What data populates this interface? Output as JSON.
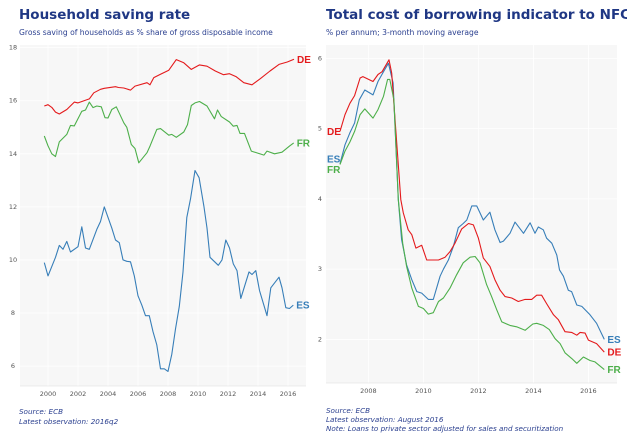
{
  "chart_data": [
    {
      "type": "line",
      "title": "Household saving rate",
      "subtitle": "Gross saving of households as % share of gross disposable income",
      "xlim": [
        1998.13,
        2017.2
      ],
      "ylim": [
        5.25,
        18.1
      ],
      "xticks": [
        2000,
        2002,
        2004,
        2006,
        2008,
        2010,
        2012,
        2014,
        2016
      ],
      "yticks": [
        6,
        8,
        10,
        12,
        14,
        16,
        18
      ],
      "grid": true,
      "label_position": "end",
      "footnotes": [
        "Source: ECB",
        "Latest observation: 2016q2"
      ],
      "series": [
        {
          "name": "DE",
          "color": "#e41a1c",
          "x": [
            1999.75,
            2000.0,
            2000.25,
            2000.5,
            2000.75,
            2001.25,
            2001.75,
            2002.0,
            2002.75,
            2003.05,
            2003.5,
            2003.75,
            2004.5,
            2004.7,
            2005.05,
            2005.5,
            2005.8,
            2006.6,
            2006.8,
            2007.05,
            2007.5,
            2008.05,
            2008.55,
            2009.05,
            2009.55,
            2010.1,
            2010.6,
            2011.15,
            2011.7,
            2012.1,
            2012.55,
            2013.05,
            2013.6,
            2014.15,
            2014.8,
            2015.4,
            2015.95,
            2016.4
          ],
          "y": [
            15.8,
            15.85,
            15.75,
            15.57,
            15.5,
            15.67,
            15.95,
            15.92,
            16.07,
            16.3,
            16.43,
            16.47,
            16.53,
            16.5,
            16.48,
            16.4,
            16.55,
            16.68,
            16.6,
            16.87,
            17.0,
            17.15,
            17.55,
            17.43,
            17.18,
            17.35,
            17.3,
            17.12,
            16.98,
            17.02,
            16.9,
            16.68,
            16.6,
            16.83,
            17.12,
            17.37,
            17.46,
            17.56
          ]
        },
        {
          "name": "FR",
          "color": "#4daf4a",
          "x": [
            1999.75,
            2000.0,
            2000.25,
            2000.5,
            2000.75,
            2001.25,
            2001.5,
            2001.75,
            2002.25,
            2002.5,
            2002.75,
            2003.0,
            2003.25,
            2003.55,
            2003.8,
            2004.0,
            2004.25,
            2004.55,
            2005.05,
            2005.25,
            2005.55,
            2005.8,
            2006.05,
            2006.6,
            2006.8,
            2007.25,
            2007.5,
            2008.05,
            2008.25,
            2008.55,
            2009.05,
            2009.3,
            2009.55,
            2009.8,
            2010.1,
            2010.6,
            2011.1,
            2011.3,
            2011.55,
            2012.1,
            2012.35,
            2012.6,
            2012.8,
            2013.1,
            2013.55,
            2014.4,
            2014.6,
            2015.1,
            2015.6,
            2016.1,
            2016.38
          ],
          "y": [
            14.67,
            14.3,
            14.0,
            13.9,
            14.45,
            14.73,
            15.07,
            15.05,
            15.6,
            15.65,
            15.95,
            15.74,
            15.8,
            15.77,
            15.36,
            15.35,
            15.67,
            15.77,
            15.17,
            15.0,
            14.35,
            14.2,
            13.66,
            14.04,
            14.29,
            14.92,
            14.95,
            14.7,
            14.73,
            14.62,
            14.82,
            15.1,
            15.82,
            15.92,
            15.97,
            15.8,
            15.32,
            15.65,
            15.4,
            15.2,
            15.04,
            15.07,
            14.77,
            14.77,
            14.1,
            13.95,
            14.1,
            14.0,
            14.06,
            14.29,
            14.41
          ]
        },
        {
          "name": "ES",
          "color": "#377eb8",
          "x": [
            1999.75,
            2000.0,
            2000.5,
            2000.75,
            2001.0,
            2001.25,
            2001.5,
            2002.0,
            2002.25,
            2002.5,
            2002.75,
            2003.25,
            2003.5,
            2003.75,
            2004.25,
            2004.5,
            2004.75,
            2005.0,
            2005.25,
            2005.5,
            2005.75,
            2006.0,
            2006.25,
            2006.5,
            2006.75,
            2007.0,
            2007.25,
            2007.5,
            2007.75,
            2008.0,
            2008.25,
            2008.5,
            2008.75,
            2009.0,
            2009.25,
            2009.5,
            2009.8,
            2010.07,
            2010.4,
            2010.6,
            2010.8,
            2011.35,
            2011.6,
            2011.85,
            2012.1,
            2012.35,
            2012.6,
            2012.85,
            2013.4,
            2013.6,
            2013.85,
            2014.1,
            2014.6,
            2014.85,
            2015.4,
            2015.6,
            2015.85,
            2016.1,
            2016.35
          ],
          "y": [
            9.9,
            9.4,
            10.1,
            10.55,
            10.4,
            10.7,
            10.3,
            10.5,
            11.25,
            10.45,
            10.4,
            11.15,
            11.45,
            12.0,
            11.2,
            10.75,
            10.65,
            10.0,
            9.95,
            9.93,
            9.4,
            8.65,
            8.3,
            7.9,
            7.9,
            7.3,
            6.8,
            5.9,
            5.9,
            5.8,
            6.45,
            7.4,
            8.25,
            9.55,
            11.6,
            12.3,
            13.37,
            13.1,
            12.0,
            11.2,
            10.1,
            9.8,
            10.0,
            10.75,
            10.45,
            9.85,
            9.6,
            8.55,
            9.55,
            9.45,
            9.6,
            8.85,
            7.9,
            8.95,
            9.35,
            8.95,
            8.2,
            8.17,
            8.3
          ]
        }
      ]
    },
    {
      "type": "line",
      "title": "Total cost of borrowing indicator to NFCs",
      "subtitle": "% per annum; 3-month moving average",
      "xlim": [
        2006.46,
        2017.04
      ],
      "ylim": [
        1.38,
        6.19
      ],
      "xticks": [
        2008,
        2010,
        2012,
        2014,
        2016
      ],
      "yticks": [
        2,
        3,
        4,
        5,
        6
      ],
      "grid": true,
      "label_position": "start and end",
      "footnotes": [
        "Source: ECB",
        "Latest observation: August 2016",
        "Note: Loans to private sector adjusted for sales and securitization"
      ],
      "series": [
        {
          "name": "ES",
          "color": "#377eb8",
          "x": [
            2006.97,
            2007.15,
            2007.33,
            2007.5,
            2007.67,
            2007.87,
            2008.17,
            2008.35,
            2008.55,
            2008.73,
            2008.9,
            2009.09,
            2009.21,
            2009.39,
            2009.58,
            2009.76,
            2009.94,
            2010.18,
            2010.36,
            2010.61,
            2010.73,
            2010.91,
            2011.09,
            2011.27,
            2011.45,
            2011.58,
            2011.76,
            2011.94,
            2012.06,
            2012.18,
            2012.42,
            2012.6,
            2012.79,
            2012.91,
            2013.15,
            2013.33,
            2013.64,
            2013.88,
            2014.06,
            2014.18,
            2014.36,
            2014.48,
            2014.67,
            2014.85,
            2014.95,
            2015.09,
            2015.27,
            2015.39,
            2015.58,
            2015.76,
            2016.06,
            2016.3,
            2016.58
          ],
          "y": [
            4.5,
            4.77,
            4.94,
            5.08,
            5.41,
            5.55,
            5.48,
            5.67,
            5.81,
            5.93,
            5.65,
            3.99,
            3.42,
            3.06,
            2.85,
            2.68,
            2.66,
            2.57,
            2.57,
            2.9,
            3.0,
            3.13,
            3.32,
            3.59,
            3.65,
            3.7,
            3.9,
            3.9,
            3.8,
            3.7,
            3.81,
            3.56,
            3.38,
            3.4,
            3.51,
            3.67,
            3.51,
            3.66,
            3.51,
            3.6,
            3.56,
            3.44,
            3.37,
            3.2,
            2.99,
            2.9,
            2.7,
            2.68,
            2.49,
            2.47,
            2.35,
            2.23,
            2.0
          ]
        },
        {
          "name": "DE",
          "color": "#e41a1c",
          "x": [
            2006.97,
            2007.15,
            2007.33,
            2007.5,
            2007.7,
            2007.8,
            2008.17,
            2008.35,
            2008.5,
            2008.75,
            2008.85,
            2009.18,
            2009.27,
            2009.45,
            2009.58,
            2009.73,
            2009.94,
            2010.12,
            2010.36,
            2010.55,
            2010.79,
            2010.97,
            2011.15,
            2011.39,
            2011.64,
            2011.82,
            2012.0,
            2012.18,
            2012.42,
            2012.6,
            2012.79,
            2012.97,
            2013.21,
            2013.45,
            2013.7,
            2013.94,
            2014.12,
            2014.3,
            2014.48,
            2014.73,
            2014.91,
            2015.15,
            2015.39,
            2015.58,
            2015.7,
            2015.88,
            2016.0,
            2016.3,
            2016.58
          ],
          "y": [
            4.96,
            5.2,
            5.36,
            5.47,
            5.72,
            5.74,
            5.67,
            5.77,
            5.81,
            5.98,
            5.79,
            3.99,
            3.8,
            3.56,
            3.49,
            3.3,
            3.34,
            3.13,
            3.13,
            3.13,
            3.17,
            3.25,
            3.37,
            3.57,
            3.65,
            3.63,
            3.44,
            3.16,
            3.04,
            2.85,
            2.7,
            2.61,
            2.59,
            2.54,
            2.57,
            2.57,
            2.63,
            2.63,
            2.51,
            2.35,
            2.28,
            2.11,
            2.1,
            2.06,
            2.1,
            2.09,
            1.99,
            1.94,
            1.82
          ]
        },
        {
          "name": "FR",
          "color": "#4daf4a",
          "x": [
            2006.97,
            2007.15,
            2007.33,
            2007.5,
            2007.7,
            2007.87,
            2008.17,
            2008.35,
            2008.55,
            2008.7,
            2008.78,
            2008.93,
            2009.09,
            2009.25,
            2009.39,
            2009.58,
            2009.82,
            2010.0,
            2010.18,
            2010.36,
            2010.55,
            2010.73,
            2010.97,
            2011.21,
            2011.45,
            2011.7,
            2011.88,
            2012.06,
            2012.3,
            2012.48,
            2012.67,
            2012.85,
            2013.15,
            2013.39,
            2013.7,
            2013.98,
            2014.12,
            2014.36,
            2014.58,
            2014.79,
            2014.97,
            2015.15,
            2015.39,
            2015.58,
            2015.82,
            2016.06,
            2016.24,
            2016.58
          ],
          "y": [
            4.49,
            4.68,
            4.81,
            4.96,
            5.2,
            5.28,
            5.15,
            5.27,
            5.46,
            5.7,
            5.7,
            5.41,
            3.99,
            3.37,
            3.04,
            2.73,
            2.47,
            2.44,
            2.36,
            2.38,
            2.54,
            2.59,
            2.73,
            2.92,
            3.09,
            3.17,
            3.18,
            3.09,
            2.78,
            2.61,
            2.42,
            2.25,
            2.2,
            2.18,
            2.13,
            2.22,
            2.23,
            2.2,
            2.14,
            2.01,
            1.94,
            1.81,
            1.73,
            1.66,
            1.75,
            1.7,
            1.68,
            1.57
          ]
        }
      ]
    }
  ]
}
